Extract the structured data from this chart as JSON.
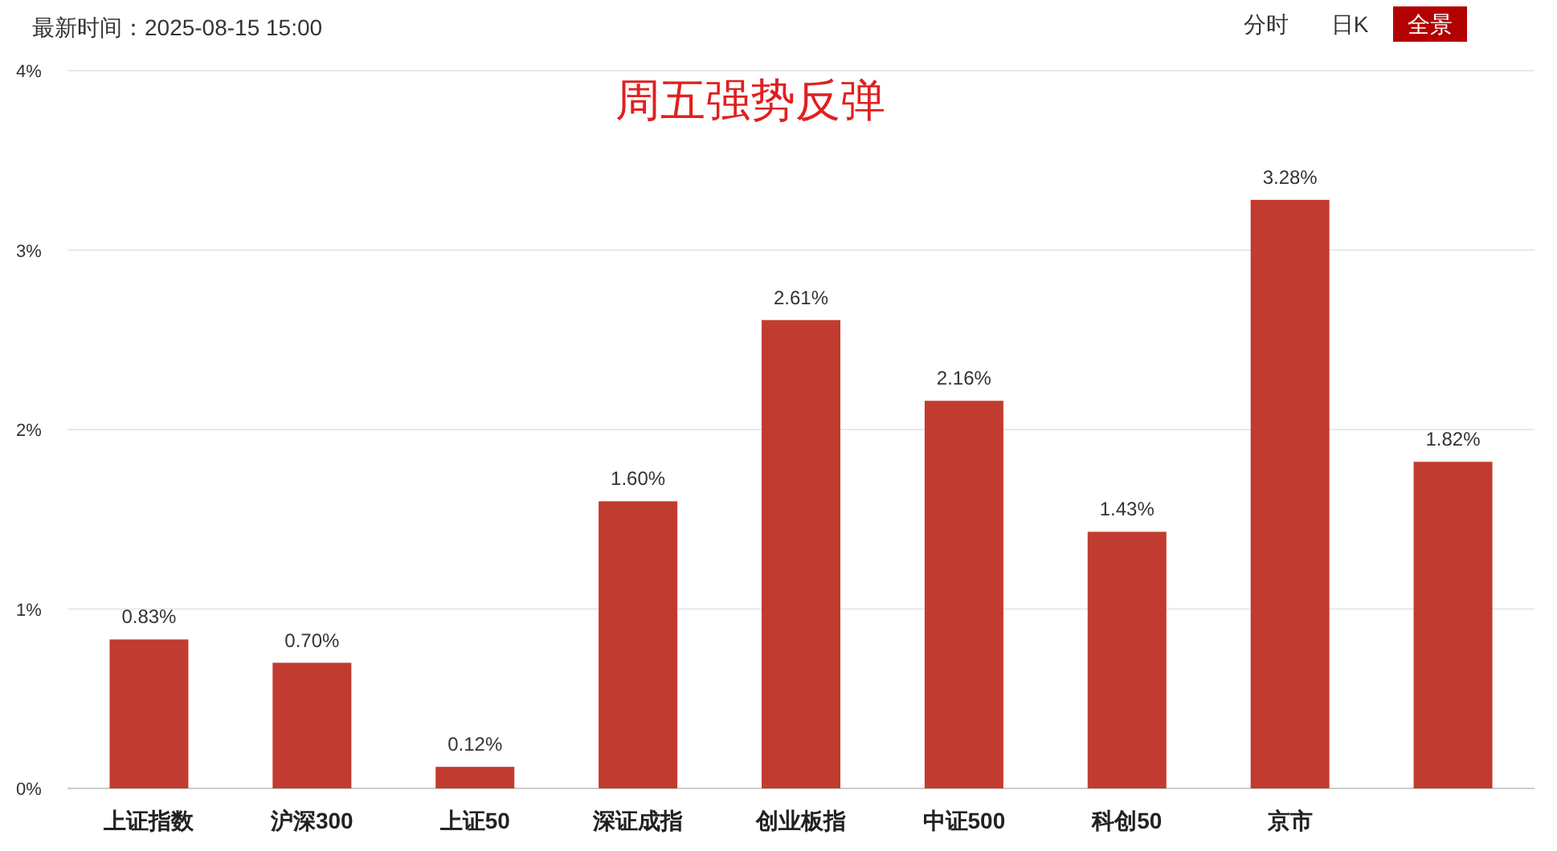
{
  "chart_data": {
    "type": "bar",
    "title": "周五强势反弹",
    "annotations": [
      "最新时间：2025-08-15 15:00",
      "分时",
      "日K",
      "全景"
    ],
    "categories": [
      "上证指数",
      "沪深300",
      "上证50",
      "深证成指",
      "创业板指",
      "中证500",
      "科创50",
      "京市",
      null
    ],
    "values": [
      0.83,
      0.7,
      0.12,
      1.6,
      2.61,
      2.16,
      1.43,
      3.28,
      1.82
    ],
    "value_labels": [
      "0.83%",
      "0.70%",
      "0.12%",
      "1.60%",
      "2.61%",
      "2.16%",
      "1.43%",
      "3.28%",
      "1.82%"
    ],
    "color": "#c23b30",
    "ylim": [
      0,
      4
    ],
    "yticks": [
      {
        "value": 0,
        "label": "0%"
      },
      {
        "value": 1,
        "label": "1%"
      },
      {
        "value": 2,
        "label": "2%"
      },
      {
        "value": 3,
        "label": "3%"
      },
      {
        "value": 4,
        "label": "4%"
      }
    ],
    "grid": "y"
  }
}
